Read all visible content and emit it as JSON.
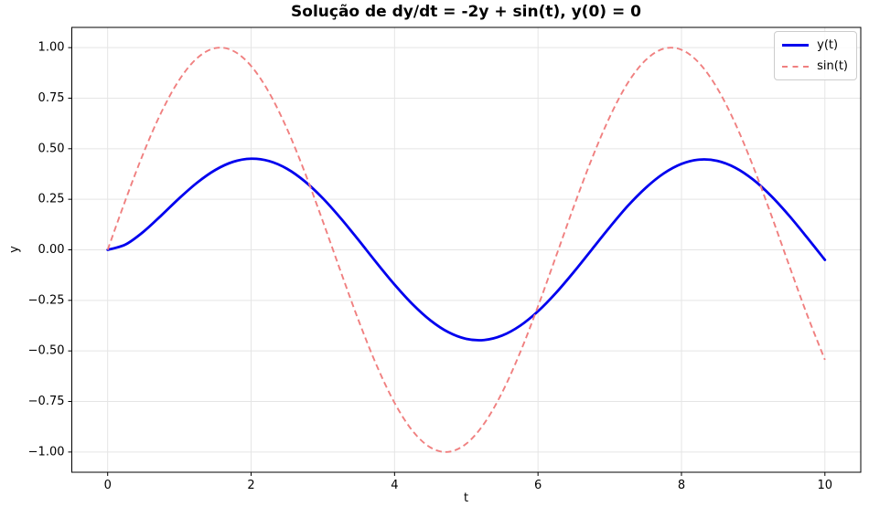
{
  "figure": {
    "background": "#ffffff",
    "frame_color": "#000000"
  },
  "chart_data": {
    "type": "line",
    "title": "Solução de dy/dt = -2y + sin(t), y(0) = 0",
    "xlabel": "t",
    "ylabel": "y",
    "xlim": [
      -0.5,
      10.5
    ],
    "ylim": [
      -1.1,
      1.1
    ],
    "grid": true,
    "grid_color": "#e5e5e5",
    "legend_position": "upper right",
    "xticks": {
      "values": [
        0,
        2,
        4,
        6,
        8,
        10
      ],
      "labels": [
        "0",
        "2",
        "4",
        "6",
        "8",
        "10"
      ]
    },
    "yticks": {
      "values": [
        -1,
        -0.75,
        -0.5,
        -0.25,
        0,
        0.25,
        0.5,
        0.75,
        1
      ],
      "labels": [
        "−1.00",
        "−0.75",
        "−0.50",
        "−0.25",
        "0.00",
        "0.25",
        "0.50",
        "0.75",
        "1.00"
      ]
    },
    "x": [
      0,
      0.25,
      0.5,
      0.75,
      1,
      1.25,
      1.5,
      1.75,
      2,
      2.25,
      2.5,
      2.75,
      3,
      3.25,
      3.5,
      3.75,
      4,
      4.25,
      4.5,
      4.75,
      5,
      5.25,
      5.5,
      5.75,
      6,
      6.25,
      6.5,
      6.75,
      7,
      7.25,
      7.5,
      7.75,
      8,
      8.25,
      8.5,
      8.75,
      9,
      9.25,
      9.5,
      9.75,
      10
    ],
    "series": [
      {
        "name": "yt",
        "label": "y(t)",
        "color": "#0000ee",
        "line_style": "solid",
        "line_width": 2.8,
        "values": [
          0,
          0.0265,
          0.0898,
          0.1709,
          0.2556,
          0.3329,
          0.3948,
          0.4353,
          0.4506,
          0.4391,
          0.401,
          0.3383,
          0.2549,
          0.1558,
          0.0472,
          -0.0644,
          -0.1719,
          -0.2687,
          -0.3488,
          -0.4072,
          -0.4403,
          -0.446,
          -0.4239,
          -0.3755,
          -0.3038,
          -0.2132,
          -0.1093,
          0.0014,
          0.112,
          0.2165,
          0.3059,
          0.3771,
          0.4248,
          0.4462,
          0.4398,
          0.4061,
          0.3471,
          0.2665,
          0.1694,
          0.0617,
          -0.0498
        ]
      },
      {
        "name": "sint",
        "label": "sin(t)",
        "color": "#f08080",
        "line_style": "dashed",
        "line_width": 1.9,
        "values": [
          0,
          0.2474,
          0.4794,
          0.6816,
          0.8415,
          0.949,
          0.9975,
          0.984,
          0.9093,
          0.7781,
          0.5985,
          0.3817,
          0.1411,
          -0.1082,
          -0.3508,
          -0.5716,
          -0.7568,
          -0.895,
          -0.9775,
          -0.9993,
          -0.9589,
          -0.8589,
          -0.7055,
          -0.5083,
          -0.2794,
          -0.0332,
          0.2151,
          0.45,
          0.657,
          0.8243,
          0.938,
          0.9946,
          0.9894,
          0.9225,
          0.7985,
          0.6247,
          0.4121,
          0.1739,
          -0.0752,
          -0.3195,
          -0.544
        ]
      }
    ]
  }
}
